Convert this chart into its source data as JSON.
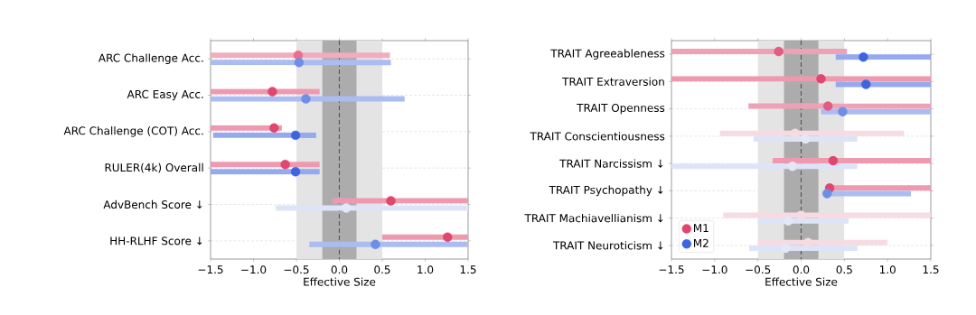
{
  "chart_data": [
    {
      "type": "scatter",
      "orientation": "horizontal",
      "grid": "y",
      "legend": false,
      "xlabel": "Effective Size",
      "categories": [
        "ARC Challenge Acc.",
        "ARC Easy Acc.",
        "ARC Challenge (COT) Acc.",
        "RULER(4k) Overall",
        "AdvBench Score  ↓",
        "HH-RLHF Score  ↓"
      ],
      "xlim": [
        -1.5,
        1.5
      ],
      "xticks": [
        {
          "value": -1.5,
          "label": "−1.5"
        },
        {
          "value": -1.0,
          "label": "−1.0"
        },
        {
          "value": -0.5,
          "label": "−0.5"
        },
        {
          "value": 0.0,
          "label": "0.0"
        },
        {
          "value": 0.5,
          "label": "0.5"
        },
        {
          "value": 1.0,
          "label": "1.0"
        },
        {
          "value": 1.5,
          "label": "1.5"
        }
      ],
      "bands": [
        {
          "axis": "x",
          "from": -0.5,
          "to": 0.5,
          "color": "#e4e4e4"
        },
        {
          "axis": "x",
          "from": -0.2,
          "to": 0.2,
          "color": "#acacac"
        }
      ],
      "ref_lines": [
        {
          "axis": "x",
          "value": 0,
          "color": "#555555",
          "line_style": "dashed"
        }
      ],
      "series": [
        {
          "color": "#e0466e",
          "colors": [
            "#e8708f",
            "#e0466e",
            "#e0466e",
            "#e0466e",
            "#e0466e",
            "#e0466e"
          ],
          "values": [
            -0.48,
            -0.78,
            -0.76,
            -0.63,
            0.6,
            1.26
          ],
          "errors": [
            [
              -1.5,
              0.59
            ],
            [
              -1.5,
              -0.23
            ],
            [
              -1.5,
              -0.67
            ],
            [
              -1.5,
              -0.23
            ],
            [
              -0.08,
              1.5
            ],
            [
              0.5,
              1.5
            ]
          ]
        },
        {
          "color": "#3e64e0",
          "colors": [
            "#6f8ee6",
            "#6f8ee6",
            "#3e64e0",
            "#3e64e0",
            "#e3e8f7",
            "#6f8ee6"
          ],
          "values": [
            -0.47,
            -0.39,
            -0.51,
            -0.51,
            0.08,
            0.42
          ],
          "errors": [
            [
              -1.5,
              0.6
            ],
            [
              -1.5,
              0.76
            ],
            [
              -1.47,
              -0.27
            ],
            [
              -1.5,
              -0.23
            ],
            [
              -0.74,
              1.5
            ],
            [
              -0.35,
              1.5
            ]
          ]
        }
      ]
    },
    {
      "type": "scatter",
      "orientation": "horizontal",
      "grid": "y",
      "legend": "bottom left",
      "xlabel": "Effective Size",
      "categories": [
        "TRAIT Agreeableness",
        "TRAIT Extraversion",
        "TRAIT Openness",
        "TRAIT Conscientiousness",
        "TRAIT Narcissism  ↓",
        "TRAIT Psychopathy  ↓",
        "TRAIT Machiavellianism  ↓",
        "TRAIT Neuroticism  ↓"
      ],
      "xlim": [
        -1.5,
        1.5
      ],
      "xticks": [
        {
          "value": -1.5,
          "label": "−1.5"
        },
        {
          "value": -1.0,
          "label": "−1.0"
        },
        {
          "value": -0.5,
          "label": "−0.5"
        },
        {
          "value": 0.0,
          "label": "0.0"
        },
        {
          "value": 0.5,
          "label": "0.5"
        },
        {
          "value": 1.0,
          "label": "1.0"
        },
        {
          "value": 1.5,
          "label": "1.5"
        }
      ],
      "bands": [
        {
          "axis": "x",
          "from": -0.5,
          "to": 0.5,
          "color": "#e4e4e4"
        },
        {
          "axis": "x",
          "from": -0.2,
          "to": 0.2,
          "color": "#acacac"
        }
      ],
      "ref_lines": [
        {
          "axis": "x",
          "value": 0,
          "color": "#555555",
          "line_style": "dashed"
        }
      ],
      "series": [
        {
          "name": "M1",
          "color": "#e0466e",
          "colors": [
            "#e25b80",
            "#e0466e",
            "#e25b80",
            "#f5dce3",
            "#e0466e",
            "#e0466e",
            "#f5dce3",
            "#f5dce3"
          ],
          "values": [
            -0.26,
            0.23,
            0.31,
            -0.07,
            0.37,
            0.33,
            0.0,
            0.08
          ],
          "errors": [
            [
              -1.5,
              0.53
            ],
            [
              -1.5,
              1.5
            ],
            [
              -0.61,
              1.5
            ],
            [
              -0.94,
              1.19
            ],
            [
              -0.33,
              1.5
            ],
            [
              0.33,
              1.5
            ],
            [
              -0.9,
              1.5
            ],
            [
              -0.5,
              1.0
            ]
          ]
        },
        {
          "name": "M2",
          "color": "#3e64e0",
          "colors": [
            "#3e64e0",
            "#3e64e0",
            "#6f8ee6",
            "#e3e8f7",
            "#e3e8f7",
            "#6f8ee6",
            "#e3e8f7",
            "#e3e8f7"
          ],
          "values": [
            0.72,
            0.75,
            0.48,
            0.05,
            -0.1,
            0.3,
            -0.15,
            -0.18
          ],
          "errors": [
            [
              0.4,
              1.5
            ],
            [
              0.4,
              1.5
            ],
            [
              0.23,
              1.5
            ],
            [
              -0.55,
              0.65
            ],
            [
              -1.5,
              0.65
            ],
            [
              0.3,
              1.27
            ],
            [
              -0.5,
              0.55
            ],
            [
              -0.6,
              0.65
            ]
          ]
        }
      ]
    }
  ]
}
